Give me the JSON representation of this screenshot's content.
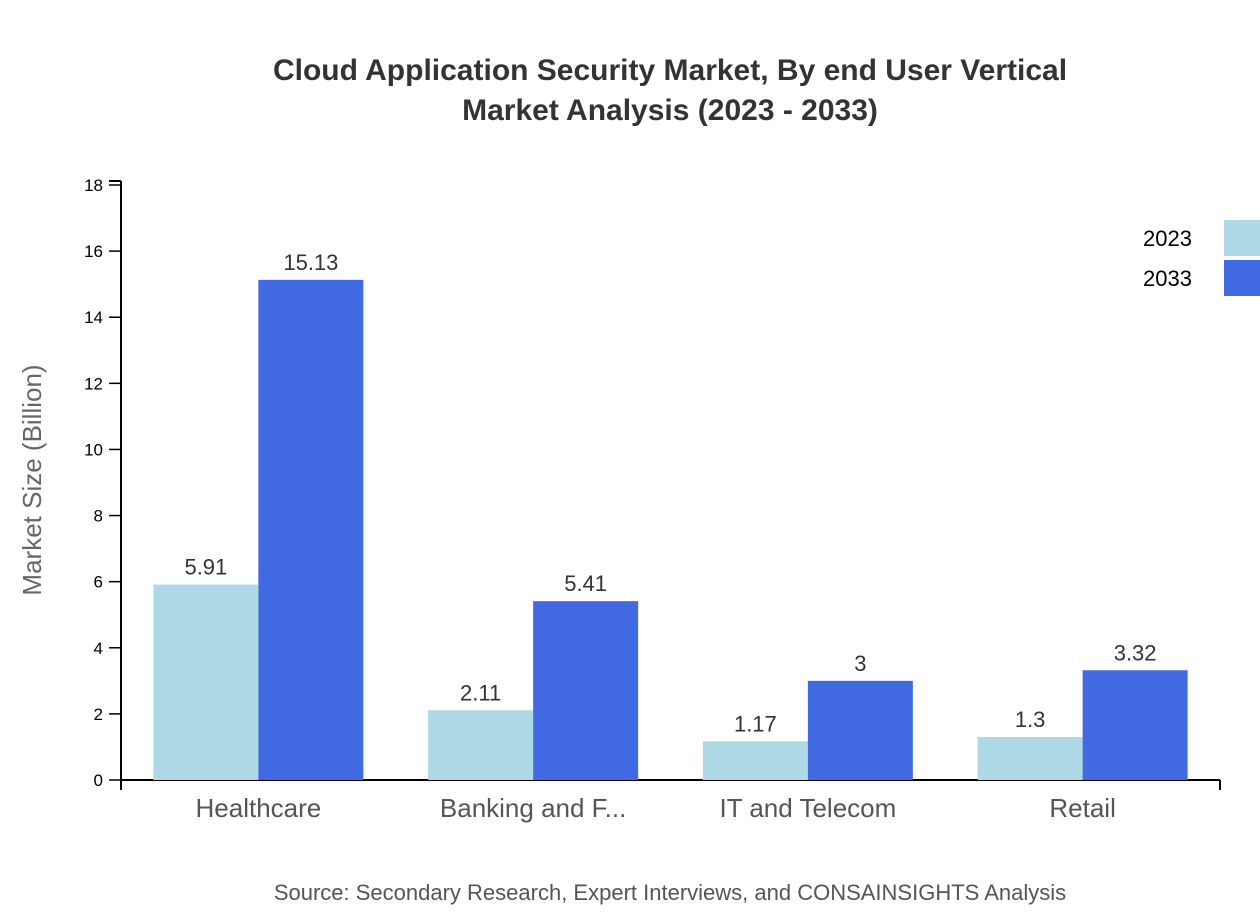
{
  "chart_data": {
    "type": "bar",
    "title": "Cloud Application Security Market, By end User Vertical",
    "subtitle": "Market Analysis (2023 - 2033)",
    "xlabel": "",
    "ylabel": "Market Size (Billion)",
    "ylim": [
      0,
      18
    ],
    "yticks": [
      0,
      2,
      4,
      6,
      8,
      10,
      12,
      14,
      16,
      18
    ],
    "categories": [
      "Healthcare",
      "Banking and F...",
      "IT and Telecom",
      "Retail"
    ],
    "series": [
      {
        "name": "2023",
        "values": [
          5.91,
          2.11,
          1.17,
          1.3
        ],
        "color": "#ADD8E6"
      },
      {
        "name": "2033",
        "values": [
          15.13,
          5.41,
          3,
          3.32
        ],
        "color": "#4169E1"
      }
    ],
    "data_labels": [
      [
        "5.91",
        "2.11",
        "1.17",
        "1.3"
      ],
      [
        "15.13",
        "5.41",
        "3",
        "3.32"
      ]
    ],
    "legend_position": "top-right",
    "grid": false,
    "source": "Source: Secondary Research, Expert Interviews, and CONSAINSIGHTS Analysis"
  }
}
